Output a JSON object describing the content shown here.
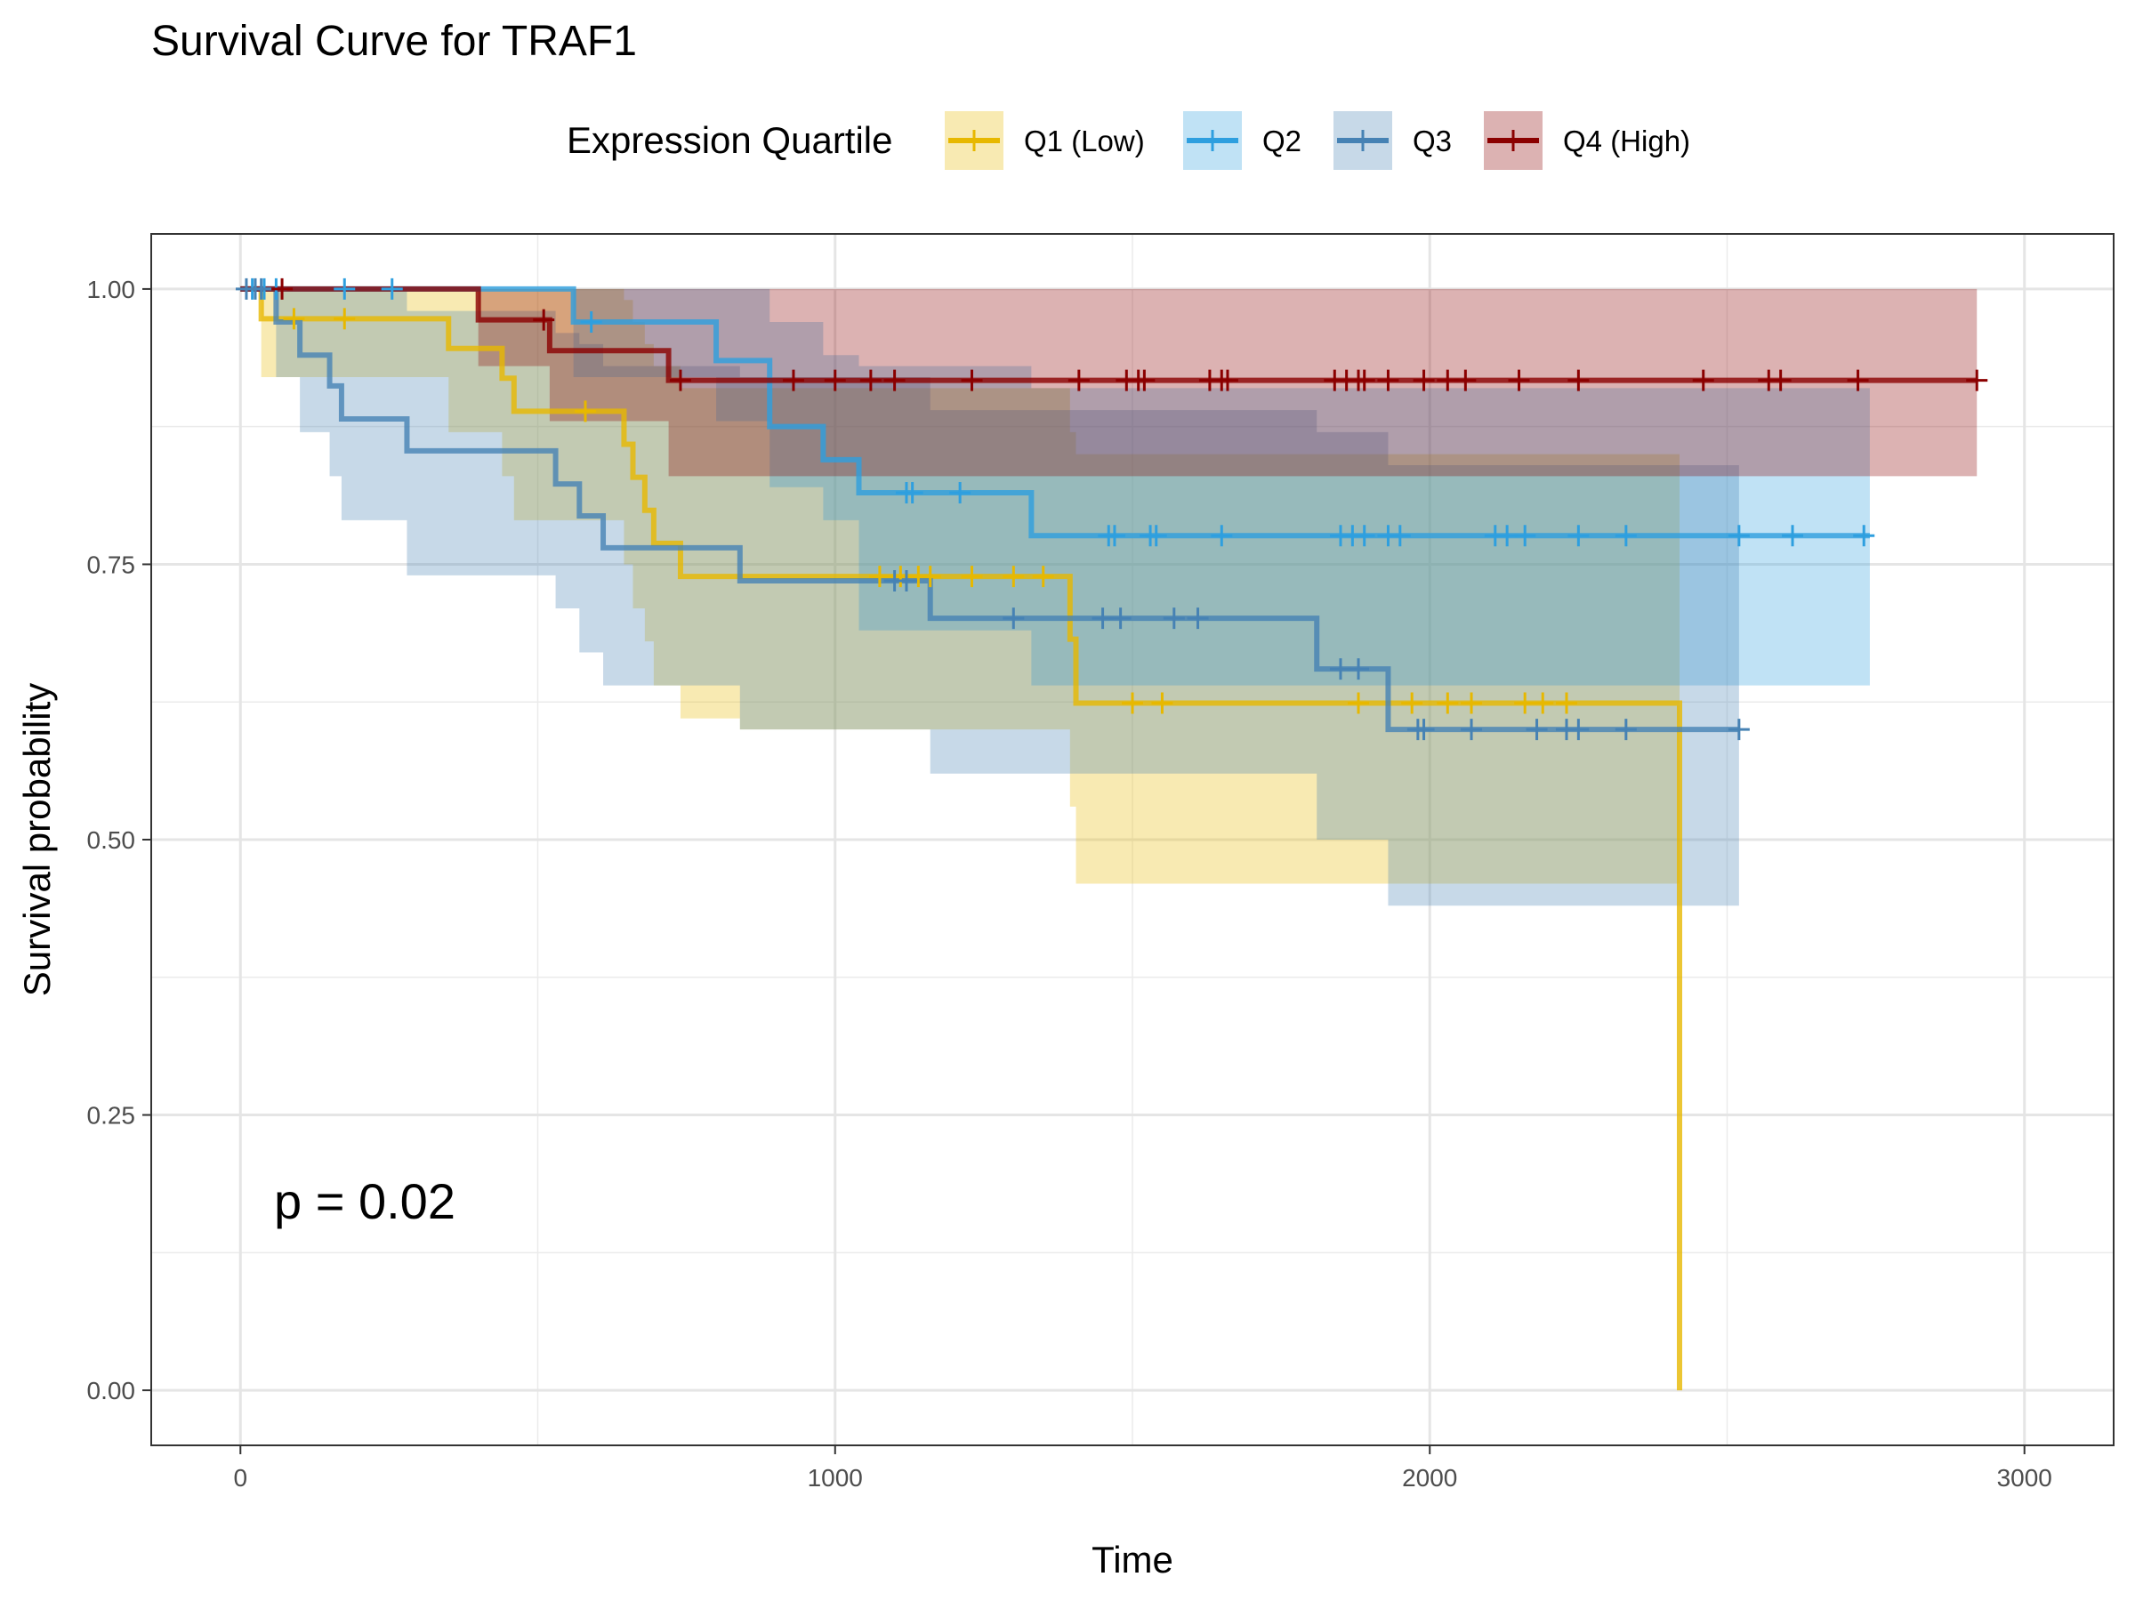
{
  "chart_data": {
    "type": "line",
    "title": "Survival Curve for TRAF1",
    "xlabel": "Time",
    "ylabel": "Survival probability",
    "xlim": [
      -150,
      3150
    ],
    "ylim": [
      -0.05,
      1.05
    ],
    "x_ticks": [
      0,
      1000,
      2000,
      3000
    ],
    "y_ticks": [
      0,
      0.25,
      0.5,
      0.75,
      1
    ],
    "x_tick_labels": [
      "0",
      "1000",
      "2000",
      "3000"
    ],
    "y_tick_labels": [
      "0.00",
      "0.25",
      "0.50",
      "0.75",
      "1.00"
    ],
    "grid": true,
    "legend_title": "Expression Quartile",
    "legend_position": "top",
    "annotation": "p = 0.02",
    "series": [
      {
        "name": "Q1 (Low)",
        "color": "#E7B800",
        "steps": [
          [
            0,
            1
          ],
          [
            35,
            0.973
          ],
          [
            350,
            0.946
          ],
          [
            440,
            0.919
          ],
          [
            460,
            0.889
          ],
          [
            645,
            0.859
          ],
          [
            660,
            0.829
          ],
          [
            680,
            0.799
          ],
          [
            695,
            0.769
          ],
          [
            740,
            0.739
          ],
          [
            1395,
            0.682
          ],
          [
            1405,
            0.624
          ],
          [
            2420,
            0
          ]
        ],
        "ci_upper": [
          [
            0,
            1
          ],
          [
            35,
            1
          ],
          [
            350,
            1
          ],
          [
            440,
            1
          ],
          [
            460,
            1
          ],
          [
            645,
            0.99
          ],
          [
            660,
            0.97
          ],
          [
            680,
            0.95
          ],
          [
            695,
            0.93
          ],
          [
            740,
            0.91
          ],
          [
            1395,
            0.87
          ],
          [
            1405,
            0.85
          ],
          [
            2420,
            0.85
          ]
        ],
        "ci_lower": [
          [
            0,
            1
          ],
          [
            35,
            0.92
          ],
          [
            350,
            0.87
          ],
          [
            440,
            0.83
          ],
          [
            460,
            0.79
          ],
          [
            645,
            0.75
          ],
          [
            660,
            0.71
          ],
          [
            680,
            0.68
          ],
          [
            695,
            0.64
          ],
          [
            740,
            0.61
          ],
          [
            840,
            0.6
          ],
          [
            1395,
            0.53
          ],
          [
            1405,
            0.46
          ],
          [
            2420,
            0.46
          ]
        ],
        "censored": [
          [
            90,
            0.973
          ],
          [
            175,
            0.973
          ],
          [
            580,
            0.889
          ],
          [
            1075,
            0.739
          ],
          [
            1110,
            0.739
          ],
          [
            1140,
            0.739
          ],
          [
            1160,
            0.739
          ],
          [
            1230,
            0.739
          ],
          [
            1300,
            0.739
          ],
          [
            1350,
            0.739
          ],
          [
            1500,
            0.624
          ],
          [
            1550,
            0.624
          ],
          [
            1880,
            0.624
          ],
          [
            1970,
            0.624
          ],
          [
            2030,
            0.624
          ],
          [
            2070,
            0.624
          ],
          [
            2160,
            0.624
          ],
          [
            2190,
            0.624
          ],
          [
            2230,
            0.624
          ]
        ]
      },
      {
        "name": "Q2",
        "color": "#2E9FDF",
        "steps": [
          [
            0,
            1
          ],
          [
            560,
            0.97
          ],
          [
            800,
            0.935
          ],
          [
            890,
            0.875
          ],
          [
            980,
            0.845
          ],
          [
            1040,
            0.815
          ],
          [
            1330,
            0.776
          ],
          [
            2740,
            0.776
          ]
        ],
        "ci_upper": [
          [
            0,
            1
          ],
          [
            560,
            1
          ],
          [
            800,
            1
          ],
          [
            890,
            0.97
          ],
          [
            980,
            0.94
          ],
          [
            1040,
            0.93
          ],
          [
            1330,
            0.91
          ],
          [
            2740,
            0.91
          ]
        ],
        "ci_lower": [
          [
            0,
            1
          ],
          [
            560,
            0.92
          ],
          [
            800,
            0.88
          ],
          [
            890,
            0.82
          ],
          [
            980,
            0.79
          ],
          [
            1040,
            0.69
          ],
          [
            1330,
            0.64
          ],
          [
            2740,
            0.64
          ]
        ],
        "censored": [
          [
            20,
            1
          ],
          [
            40,
            1
          ],
          [
            60,
            1
          ],
          [
            175,
            1
          ],
          [
            255,
            1
          ],
          [
            590,
            0.97
          ],
          [
            1120,
            0.815
          ],
          [
            1130,
            0.815
          ],
          [
            1210,
            0.815
          ],
          [
            1460,
            0.776
          ],
          [
            1470,
            0.776
          ],
          [
            1530,
            0.776
          ],
          [
            1540,
            0.776
          ],
          [
            1650,
            0.776
          ],
          [
            1850,
            0.776
          ],
          [
            1870,
            0.776
          ],
          [
            1890,
            0.776
          ],
          [
            1930,
            0.776
          ],
          [
            1950,
            0.776
          ],
          [
            2110,
            0.776
          ],
          [
            2130,
            0.776
          ],
          [
            2160,
            0.776
          ],
          [
            2250,
            0.776
          ],
          [
            2330,
            0.776
          ],
          [
            2520,
            0.776
          ],
          [
            2610,
            0.776
          ],
          [
            2730,
            0.776
          ]
        ]
      },
      {
        "name": "Q3",
        "color": "#4682B4",
        "steps": [
          [
            0,
            1
          ],
          [
            60,
            0.97
          ],
          [
            100,
            0.94
          ],
          [
            150,
            0.912
          ],
          [
            170,
            0.882
          ],
          [
            280,
            0.853
          ],
          [
            530,
            0.823
          ],
          [
            570,
            0.794
          ],
          [
            610,
            0.765
          ],
          [
            840,
            0.735
          ],
          [
            1160,
            0.701
          ],
          [
            1810,
            0.655
          ],
          [
            1930,
            0.6
          ],
          [
            2520,
            0.6
          ]
        ],
        "ci_upper": [
          [
            0,
            1
          ],
          [
            60,
            1
          ],
          [
            100,
            1
          ],
          [
            150,
            1
          ],
          [
            170,
            1
          ],
          [
            280,
            0.98
          ],
          [
            530,
            0.96
          ],
          [
            570,
            0.95
          ],
          [
            610,
            0.93
          ],
          [
            840,
            0.92
          ],
          [
            1160,
            0.89
          ],
          [
            1810,
            0.87
          ],
          [
            1930,
            0.84
          ],
          [
            2520,
            0.84
          ]
        ],
        "ci_lower": [
          [
            0,
            1
          ],
          [
            60,
            0.92
          ],
          [
            100,
            0.87
          ],
          [
            150,
            0.83
          ],
          [
            170,
            0.79
          ],
          [
            280,
            0.74
          ],
          [
            530,
            0.71
          ],
          [
            570,
            0.67
          ],
          [
            610,
            0.64
          ],
          [
            840,
            0.6
          ],
          [
            1160,
            0.56
          ],
          [
            1810,
            0.5
          ],
          [
            1930,
            0.44
          ],
          [
            2520,
            0.44
          ]
        ],
        "censored": [
          [
            10,
            1
          ],
          [
            25,
            1
          ],
          [
            35,
            1
          ],
          [
            1100,
            0.735
          ],
          [
            1120,
            0.735
          ],
          [
            1300,
            0.701
          ],
          [
            1450,
            0.701
          ],
          [
            1480,
            0.701
          ],
          [
            1570,
            0.701
          ],
          [
            1610,
            0.701
          ],
          [
            1850,
            0.655
          ],
          [
            1880,
            0.655
          ],
          [
            1980,
            0.6
          ],
          [
            1990,
            0.6
          ],
          [
            2070,
            0.6
          ],
          [
            2180,
            0.6
          ],
          [
            2230,
            0.6
          ],
          [
            2250,
            0.6
          ],
          [
            2330,
            0.6
          ],
          [
            2520,
            0.6
          ]
        ]
      },
      {
        "name": "Q4 (High)",
        "color": "#8B0000",
        "steps": [
          [
            0,
            1
          ],
          [
            400,
            0.972
          ],
          [
            520,
            0.944
          ],
          [
            720,
            0.917
          ],
          [
            2920,
            0.917
          ]
        ],
        "ci_upper": [
          [
            0,
            1
          ],
          [
            400,
            1
          ],
          [
            520,
            1
          ],
          [
            720,
            1
          ],
          [
            2920,
            1
          ]
        ],
        "ci_lower": [
          [
            0,
            1
          ],
          [
            400,
            0.93
          ],
          [
            520,
            0.88
          ],
          [
            720,
            0.83
          ],
          [
            2920,
            0.83
          ]
        ],
        "censored": [
          [
            70,
            1
          ],
          [
            510,
            0.972
          ],
          [
            740,
            0.917
          ],
          [
            930,
            0.917
          ],
          [
            1000,
            0.917
          ],
          [
            1060,
            0.917
          ],
          [
            1100,
            0.917
          ],
          [
            1230,
            0.917
          ],
          [
            1410,
            0.917
          ],
          [
            1490,
            0.917
          ],
          [
            1510,
            0.917
          ],
          [
            1520,
            0.917
          ],
          [
            1630,
            0.917
          ],
          [
            1650,
            0.917
          ],
          [
            1660,
            0.917
          ],
          [
            1840,
            0.917
          ],
          [
            1860,
            0.917
          ],
          [
            1880,
            0.917
          ],
          [
            1890,
            0.917
          ],
          [
            1930,
            0.917
          ],
          [
            1990,
            0.917
          ],
          [
            2030,
            0.917
          ],
          [
            2060,
            0.917
          ],
          [
            2150,
            0.917
          ],
          [
            2250,
            0.917
          ],
          [
            2460,
            0.917
          ],
          [
            2570,
            0.917
          ],
          [
            2590,
            0.917
          ],
          [
            2720,
            0.917
          ],
          [
            2920,
            0.917
          ]
        ]
      }
    ]
  }
}
